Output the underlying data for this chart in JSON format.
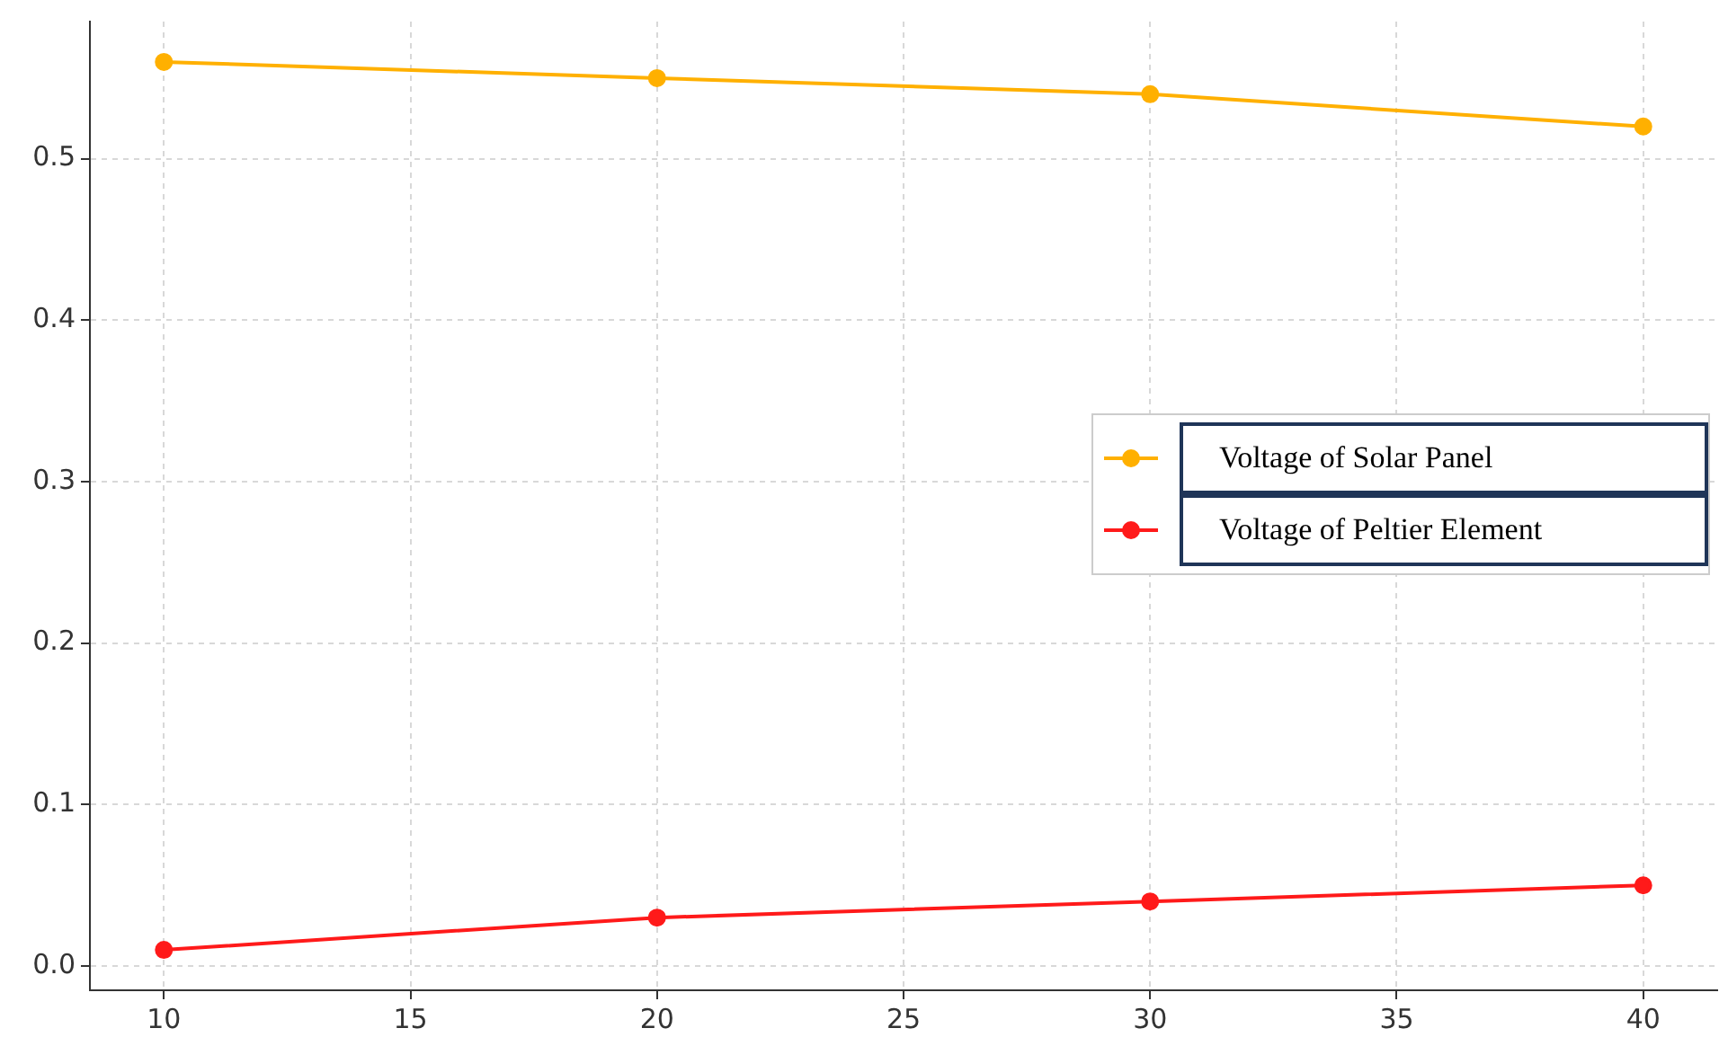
{
  "chart_data": {
    "type": "line",
    "x": [
      10,
      20,
      30,
      40
    ],
    "series": [
      {
        "name": "Voltage of Solar Panel",
        "color": "#ffb000",
        "values": [
          0.56,
          0.55,
          0.54,
          0.52
        ]
      },
      {
        "name": "Voltage of Peltier Element",
        "color": "#ff1a1a",
        "values": [
          0.01,
          0.03,
          0.04,
          0.05
        ]
      }
    ],
    "xlim": [
      8.5,
      41.5
    ],
    "xticks": [
      10,
      15,
      20,
      25,
      30,
      35,
      40
    ],
    "ylim": [
      -0.015,
      0.585
    ],
    "yticks": [
      {
        "value": 0,
        "label": "0.0"
      },
      {
        "value": 0.1,
        "label": "0.1"
      },
      {
        "value": 0.2,
        "label": "0.2"
      },
      {
        "value": 0.3,
        "label": "0.3"
      },
      {
        "value": 0.4,
        "label": "0.4"
      },
      {
        "value": 0.5,
        "label": "0.5"
      }
    ],
    "grid": true,
    "legend": "right",
    "marker": "circle",
    "line_style": "solid"
  }
}
